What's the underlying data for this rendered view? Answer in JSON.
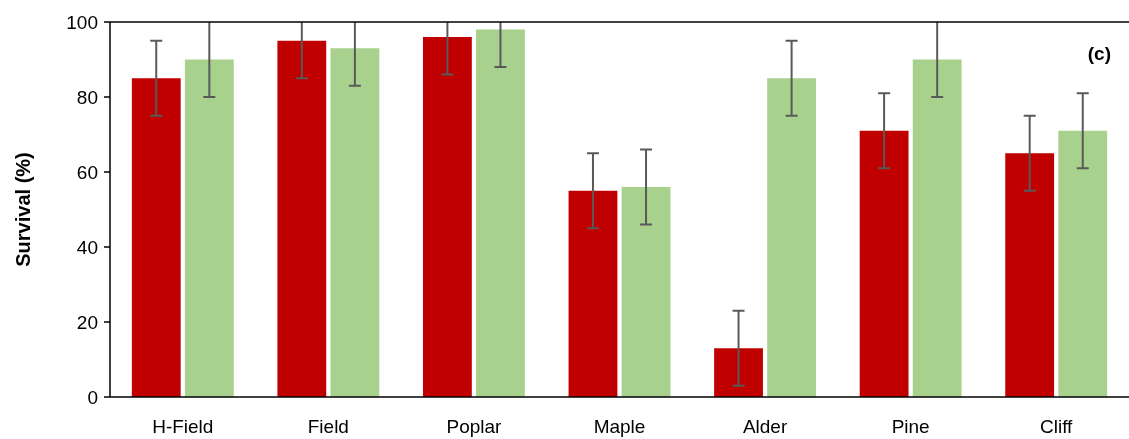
{
  "chart_data": {
    "type": "bar",
    "ylabel": "Survival (%)",
    "annotations": [
      "(c)"
    ],
    "categories": [
      "H-Field",
      "Field",
      "Poplar",
      "Maple",
      "Alder",
      "Pine",
      "Cliff"
    ],
    "series": [
      {
        "color": "#c00000",
        "values": [
          85,
          95,
          96,
          55,
          13,
          71,
          65
        ],
        "errors": [
          [
            75,
            95
          ],
          [
            85,
            100
          ],
          [
            86,
            100
          ],
          [
            45,
            65
          ],
          [
            3,
            23
          ],
          [
            61,
            81
          ],
          [
            55,
            75
          ]
        ]
      },
      {
        "color": "#a9d18e",
        "values": [
          90,
          93,
          98,
          56,
          85,
          90,
          71
        ],
        "errors": [
          [
            80,
            100
          ],
          [
            83,
            100
          ],
          [
            88,
            100
          ],
          [
            46,
            66
          ],
          [
            75,
            95
          ],
          [
            80,
            100
          ],
          [
            61,
            81
          ]
        ]
      }
    ],
    "ylim": [
      0,
      100
    ],
    "yticks": [
      0,
      20,
      40,
      60,
      80,
      100
    ],
    "grid": false
  }
}
